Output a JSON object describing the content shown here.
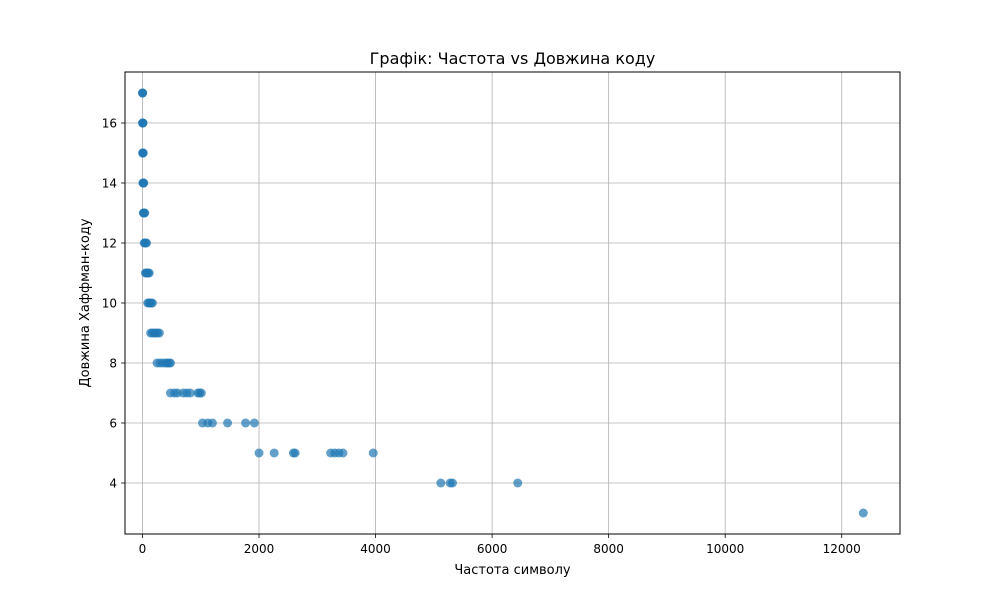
{
  "chart_data": {
    "type": "scatter",
    "title": "Графік: Частота vs Довжина коду",
    "xlabel": "Частота символу",
    "ylabel": "Довжина Хаффман-коду",
    "xlim": [
      -300,
      13000
    ],
    "ylim": [
      2.3,
      17.7
    ],
    "xticks": [
      0,
      2000,
      4000,
      6000,
      8000,
      10000,
      12000
    ],
    "xtick_labels": [
      "0",
      "2000",
      "4000",
      "6000",
      "8000",
      "10000",
      "12000"
    ],
    "yticks": [
      4,
      6,
      8,
      10,
      12,
      14,
      16
    ],
    "ytick_labels": [
      "4",
      "6",
      "8",
      "10",
      "12",
      "14",
      "16"
    ],
    "grid": true,
    "marker_color": "#1f77b4",
    "marker_alpha": 0.7,
    "points": [
      {
        "x": 1,
        "y": 17
      },
      {
        "x": 2,
        "y": 17
      },
      {
        "x": 3,
        "y": 17
      },
      {
        "x": 2,
        "y": 16
      },
      {
        "x": 4,
        "y": 16
      },
      {
        "x": 6,
        "y": 16
      },
      {
        "x": 8,
        "y": 16
      },
      {
        "x": 4,
        "y": 15
      },
      {
        "x": 6,
        "y": 15
      },
      {
        "x": 9,
        "y": 15
      },
      {
        "x": 12,
        "y": 15
      },
      {
        "x": 8,
        "y": 14
      },
      {
        "x": 12,
        "y": 14
      },
      {
        "x": 16,
        "y": 14
      },
      {
        "x": 22,
        "y": 14
      },
      {
        "x": 15,
        "y": 13
      },
      {
        "x": 22,
        "y": 13
      },
      {
        "x": 30,
        "y": 13
      },
      {
        "x": 40,
        "y": 13
      },
      {
        "x": 30,
        "y": 12
      },
      {
        "x": 40,
        "y": 12
      },
      {
        "x": 55,
        "y": 12
      },
      {
        "x": 70,
        "y": 12
      },
      {
        "x": 50,
        "y": 11
      },
      {
        "x": 65,
        "y": 11
      },
      {
        "x": 80,
        "y": 11
      },
      {
        "x": 100,
        "y": 11
      },
      {
        "x": 115,
        "y": 11
      },
      {
        "x": 90,
        "y": 10
      },
      {
        "x": 110,
        "y": 10
      },
      {
        "x": 130,
        "y": 10
      },
      {
        "x": 150,
        "y": 10
      },
      {
        "x": 170,
        "y": 10
      },
      {
        "x": 140,
        "y": 9
      },
      {
        "x": 170,
        "y": 9
      },
      {
        "x": 200,
        "y": 9
      },
      {
        "x": 230,
        "y": 9
      },
      {
        "x": 260,
        "y": 9
      },
      {
        "x": 290,
        "y": 9
      },
      {
        "x": 250,
        "y": 8
      },
      {
        "x": 300,
        "y": 8
      },
      {
        "x": 350,
        "y": 8
      },
      {
        "x": 400,
        "y": 8
      },
      {
        "x": 430,
        "y": 8
      },
      {
        "x": 460,
        "y": 8
      },
      {
        "x": 480,
        "y": 8
      },
      {
        "x": 480,
        "y": 7
      },
      {
        "x": 550,
        "y": 7
      },
      {
        "x": 600,
        "y": 7
      },
      {
        "x": 700,
        "y": 7
      },
      {
        "x": 760,
        "y": 7
      },
      {
        "x": 820,
        "y": 7
      },
      {
        "x": 950,
        "y": 7
      },
      {
        "x": 980,
        "y": 7
      },
      {
        "x": 1010,
        "y": 7
      },
      {
        "x": 1030,
        "y": 6
      },
      {
        "x": 1120,
        "y": 6
      },
      {
        "x": 1200,
        "y": 6
      },
      {
        "x": 1460,
        "y": 6
      },
      {
        "x": 1770,
        "y": 6
      },
      {
        "x": 1920,
        "y": 6
      },
      {
        "x": 2000,
        "y": 5
      },
      {
        "x": 2260,
        "y": 5
      },
      {
        "x": 2590,
        "y": 5
      },
      {
        "x": 2620,
        "y": 5
      },
      {
        "x": 3230,
        "y": 5
      },
      {
        "x": 3300,
        "y": 5
      },
      {
        "x": 3370,
        "y": 5
      },
      {
        "x": 3440,
        "y": 5
      },
      {
        "x": 3960,
        "y": 5
      },
      {
        "x": 5120,
        "y": 4
      },
      {
        "x": 5280,
        "y": 4
      },
      {
        "x": 5320,
        "y": 4
      },
      {
        "x": 6440,
        "y": 4
      },
      {
        "x": 12370,
        "y": 3
      }
    ]
  }
}
